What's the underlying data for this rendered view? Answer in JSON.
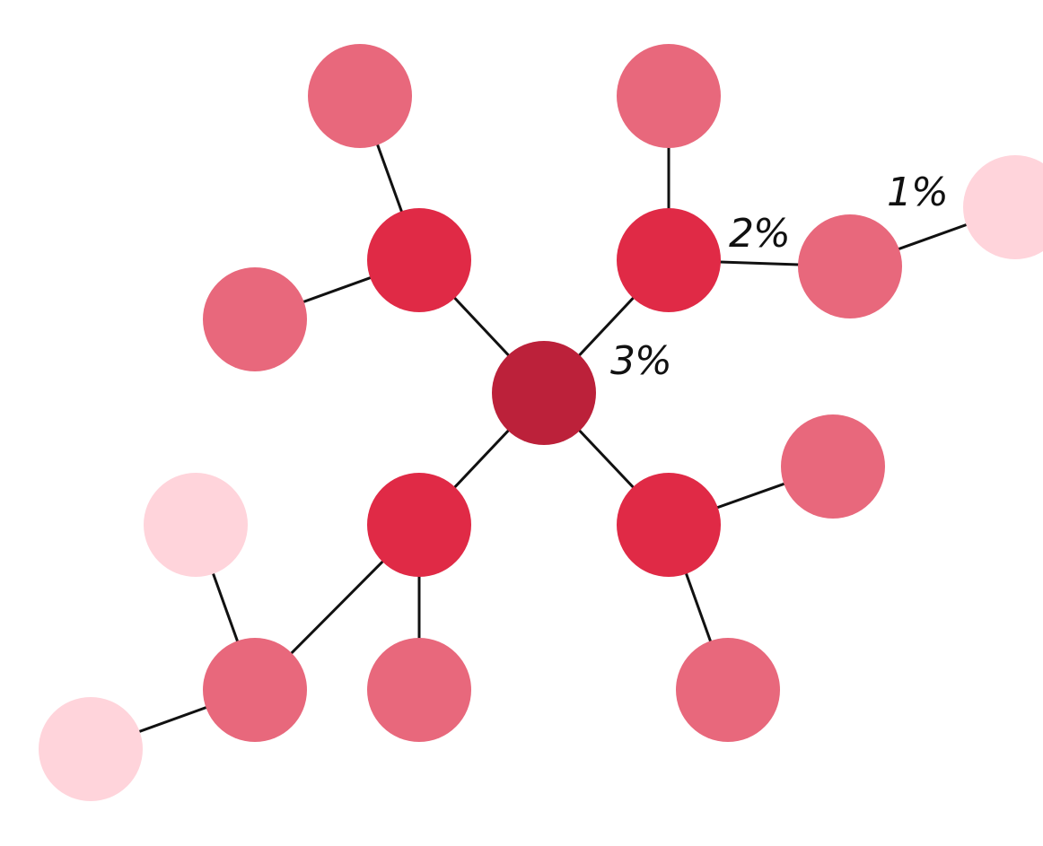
{
  "colors": {
    "center": "#BC213A",
    "level1": "#E02A46",
    "level2": "#E8687C",
    "level3": "#FFD4DB",
    "edge": "#111111",
    "background": "#FFFFFF"
  },
  "labels": {
    "first": "3%",
    "second": "2%",
    "third": "1%"
  },
  "nodes": [
    {
      "id": "center",
      "tier": "center"
    },
    {
      "id": "l1-top-left",
      "tier": "level1"
    },
    {
      "id": "l1-top-right",
      "tier": "level1"
    },
    {
      "id": "l1-bottom-left",
      "tier": "level1"
    },
    {
      "id": "l1-bottom-right",
      "tier": "level1"
    },
    {
      "id": "l2-a",
      "tier": "level2"
    },
    {
      "id": "l2-b",
      "tier": "level2"
    },
    {
      "id": "l2-c",
      "tier": "level2"
    },
    {
      "id": "l2-d",
      "tier": "level2"
    },
    {
      "id": "l2-e",
      "tier": "level2"
    },
    {
      "id": "l2-f",
      "tier": "level2"
    },
    {
      "id": "l2-g",
      "tier": "level2"
    },
    {
      "id": "l2-h",
      "tier": "level2"
    },
    {
      "id": "l3-a",
      "tier": "level3"
    },
    {
      "id": "l3-b",
      "tier": "level3"
    },
    {
      "id": "l3-c",
      "tier": "level3"
    }
  ],
  "edges": [
    [
      "center",
      "l1-top-left"
    ],
    [
      "center",
      "l1-top-right"
    ],
    [
      "center",
      "l1-bottom-left"
    ],
    [
      "center",
      "l1-bottom-right"
    ],
    [
      "l1-top-left",
      "l2-a"
    ],
    [
      "l1-top-left",
      "l2-b"
    ],
    [
      "l1-top-right",
      "l2-c"
    ],
    [
      "l1-top-right",
      "l2-d"
    ],
    [
      "l1-bottom-right",
      "l2-e"
    ],
    [
      "l1-bottom-right",
      "l2-f"
    ],
    [
      "l1-bottom-left",
      "l2-g"
    ],
    [
      "l1-bottom-left",
      "l2-h"
    ],
    [
      "l2-d",
      "l3-a"
    ],
    [
      "l2-h",
      "l3-b"
    ],
    [
      "l2-h",
      "l3-c"
    ]
  ]
}
